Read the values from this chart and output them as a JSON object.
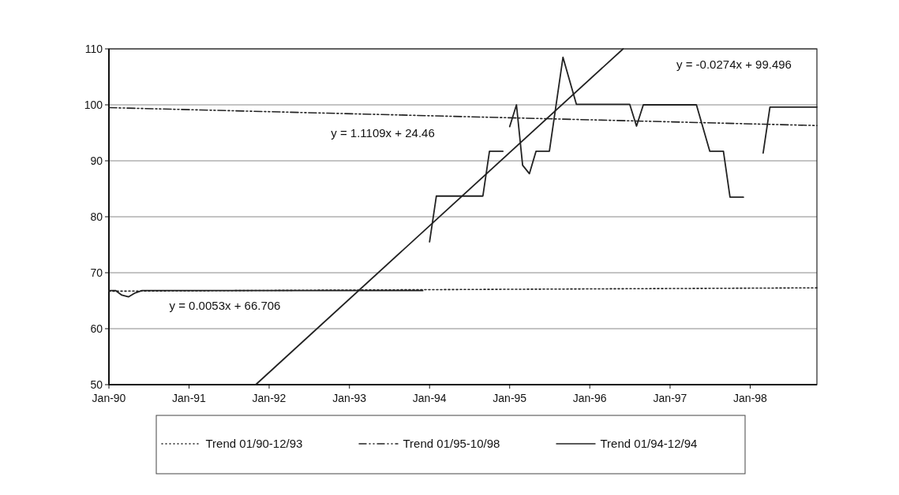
{
  "chart_data": {
    "type": "line",
    "xlim": [
      "1990-01",
      "1998-11"
    ],
    "xticks": [
      {
        "value": "1990-01",
        "label": "Jan-90"
      },
      {
        "value": "1991-01",
        "label": "Jan-91"
      },
      {
        "value": "1992-01",
        "label": "Jan-92"
      },
      {
        "value": "1993-01",
        "label": "Jan-93"
      },
      {
        "value": "1994-01",
        "label": "Jan-94"
      },
      {
        "value": "1995-01",
        "label": "Jan-95"
      },
      {
        "value": "1996-01",
        "label": "Jan-96"
      },
      {
        "value": "1997-01",
        "label": "Jan-97"
      },
      {
        "value": "1998-01",
        "label": "Jan-98"
      }
    ],
    "ylim": [
      50,
      110
    ],
    "yticks": [
      50,
      60,
      70,
      80,
      90,
      100,
      110
    ],
    "grid": "y",
    "legend": "bottom",
    "series": [
      {
        "color": "#222222",
        "line_style": "solid",
        "x": [
          "1990-01",
          "1990-02",
          "1990-03",
          "1990-04",
          "1990-05",
          "1990-06",
          "1993-12",
          "1993-12-20",
          "1994-01",
          "1994-02",
          "1994-09",
          "1994-10",
          "1994-12",
          "1994-12-20",
          "1995-01",
          "1995-02",
          "1995-03",
          "1995-04",
          "1995-05",
          "1995-07",
          "1995-09",
          "1995-11",
          "1996-07",
          "1996-08",
          "1996-09",
          "1997-05",
          "1997-07",
          "1997-09",
          "1997-10",
          "1997-12",
          "1998-01-15",
          "1998-03",
          "1998-04",
          "1998-11"
        ],
        "values": [
          66.8,
          66.8,
          66.0,
          65.7,
          66.4,
          66.8,
          66.8,
          null,
          75.5,
          83.7,
          83.7,
          91.7,
          91.7,
          null,
          96.1,
          100.0,
          89.2,
          87.7,
          91.7,
          91.7,
          108.5,
          100.1,
          100.1,
          96.2,
          100.0,
          100.0,
          91.7,
          91.7,
          83.5,
          83.5,
          null,
          91.4,
          99.6,
          99.6
        ]
      },
      {
        "name": "Trend 01/90-12/93",
        "color": "#222222",
        "line_style": "dotted",
        "x": [
          "1990-01",
          "1998-11"
        ],
        "values": [
          66.7,
          67.3
        ]
      },
      {
        "name": "Trend 01/95-10/98",
        "color": "#222222",
        "line_style": "dashed",
        "x": [
          "1990-01",
          "1998-11"
        ],
        "values": [
          99.5,
          96.3
        ]
      },
      {
        "name": "Trend 01/94-12/94",
        "color": "#222222",
        "line_style": "solid",
        "x": [
          "1991-11",
          "1996-06"
        ],
        "values": [
          50,
          110
        ]
      }
    ],
    "annotations": [
      "y = 1.1109x + 24.46",
      "y = -0.0274x + 99.496",
      "y = 0.0053x + 66.706"
    ]
  }
}
